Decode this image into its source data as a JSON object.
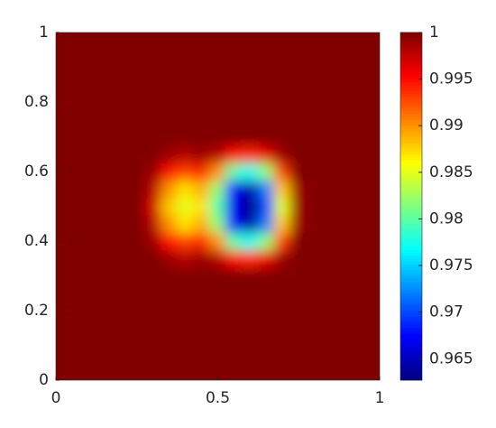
{
  "chart_data": {
    "type": "heatmap",
    "colormap": "jet",
    "x": [
      0,
      0.05,
      0.1,
      0.15,
      0.2,
      0.25,
      0.3,
      0.35,
      0.4,
      0.45,
      0.5,
      0.55,
      0.6,
      0.65,
      0.7,
      0.75,
      0.8,
      0.85,
      0.9,
      0.95,
      1
    ],
    "y": [
      0,
      0.05,
      0.1,
      0.15,
      0.2,
      0.25,
      0.3,
      0.35,
      0.4,
      0.45,
      0.5,
      0.55,
      0.6,
      0.65,
      0.7,
      0.75,
      0.8,
      0.85,
      0.9,
      0.95,
      1
    ],
    "z": [
      [
        1,
        1,
        1,
        1,
        1,
        1,
        1,
        1,
        1,
        1,
        1,
        1,
        1,
        1,
        1,
        1,
        1,
        1,
        1,
        1,
        1
      ],
      [
        1,
        1,
        1,
        1,
        1,
        1,
        1,
        1,
        1,
        1,
        1,
        1,
        1,
        1,
        1,
        1,
        1,
        1,
        1,
        1,
        1
      ],
      [
        1,
        1,
        1,
        1,
        1,
        1,
        1,
        1,
        1,
        1,
        1,
        1,
        1,
        1,
        1,
        1,
        1,
        1,
        1,
        1,
        1
      ],
      [
        1,
        1,
        1,
        1,
        1,
        1,
        1,
        1,
        1,
        1,
        1,
        1,
        1,
        1,
        1,
        1,
        1,
        1,
        1,
        1,
        1
      ],
      [
        1,
        1,
        1,
        1,
        1,
        1,
        1,
        1,
        1,
        1,
        1,
        1,
        1,
        1,
        1,
        1,
        1,
        1,
        1,
        1,
        1
      ],
      [
        1,
        1,
        1,
        1,
        1,
        1,
        1,
        1,
        1,
        1,
        1,
        1,
        1,
        1,
        1,
        1,
        1,
        1,
        1,
        1,
        1
      ],
      [
        1,
        1,
        1,
        1,
        1,
        1,
        1,
        1,
        1,
        1,
        1,
        1,
        1,
        1,
        1,
        1,
        1,
        1,
        1,
        1,
        1
      ],
      [
        1,
        1,
        1,
        1,
        1,
        1,
        1,
        0.999,
        0.998,
        0.999,
        0.998,
        0.995,
        0.994,
        0.996,
        0.999,
        1,
        1,
        1,
        1,
        1,
        1
      ],
      [
        1,
        1,
        1,
        1,
        1,
        1,
        0.999,
        0.995,
        0.993,
        0.994,
        0.99,
        0.98,
        0.977,
        0.982,
        0.993,
        1,
        1,
        1,
        1,
        1,
        1
      ],
      [
        1,
        1,
        1,
        1,
        1,
        1,
        0.998,
        0.99,
        0.987,
        0.989,
        0.982,
        0.968,
        0.964,
        0.972,
        0.988,
        0.999,
        1,
        1,
        1,
        1,
        1
      ],
      [
        1,
        1,
        1,
        1,
        1,
        1,
        0.997,
        0.988,
        0.985,
        0.987,
        0.98,
        0.967,
        0.963,
        0.97,
        0.985,
        0.999,
        1,
        1,
        1,
        1,
        1
      ],
      [
        1,
        1,
        1,
        1,
        1,
        1,
        0.998,
        0.99,
        0.987,
        0.989,
        0.982,
        0.968,
        0.964,
        0.972,
        0.988,
        0.999,
        1,
        1,
        1,
        1,
        1
      ],
      [
        1,
        1,
        1,
        1,
        1,
        1,
        0.999,
        0.995,
        0.993,
        0.994,
        0.99,
        0.98,
        0.977,
        0.982,
        0.993,
        1,
        1,
        1,
        1,
        1,
        1
      ],
      [
        1,
        1,
        1,
        1,
        1,
        1,
        1,
        0.999,
        0.998,
        0.999,
        0.998,
        0.995,
        0.994,
        0.996,
        0.999,
        1,
        1,
        1,
        1,
        1,
        1
      ],
      [
        1,
        1,
        1,
        1,
        1,
        1,
        1,
        1,
        1,
        1,
        1,
        1,
        1,
        1,
        1,
        1,
        1,
        1,
        1,
        1,
        1
      ],
      [
        1,
        1,
        1,
        1,
        1,
        1,
        1,
        1,
        1,
        1,
        1,
        1,
        1,
        1,
        1,
        1,
        1,
        1,
        1,
        1,
        1
      ],
      [
        1,
        1,
        1,
        1,
        1,
        1,
        1,
        1,
        1,
        1,
        1,
        1,
        1,
        1,
        1,
        1,
        1,
        1,
        1,
        1,
        1
      ],
      [
        1,
        1,
        1,
        1,
        1,
        1,
        1,
        1,
        1,
        1,
        1,
        1,
        1,
        1,
        1,
        1,
        1,
        1,
        1,
        1,
        1
      ],
      [
        1,
        1,
        1,
        1,
        1,
        1,
        1,
        1,
        1,
        1,
        1,
        1,
        1,
        1,
        1,
        1,
        1,
        1,
        1,
        1,
        1
      ],
      [
        1,
        1,
        1,
        1,
        1,
        1,
        1,
        1,
        1,
        1,
        1,
        1,
        1,
        1,
        1,
        1,
        1,
        1,
        1,
        1,
        1
      ],
      [
        1,
        1,
        1,
        1,
        1,
        1,
        1,
        1,
        1,
        1,
        1,
        1,
        1,
        1,
        1,
        1,
        1,
        1,
        1,
        1,
        1
      ]
    ],
    "xlim": [
      0,
      1
    ],
    "xticks": [
      0,
      0.5,
      1
    ],
    "ylim": [
      0,
      1
    ],
    "yticks": [
      0,
      0.2,
      0.4,
      0.6,
      0.8,
      1
    ],
    "clim": [
      0.9627,
      1
    ],
    "cticks": [
      0.965,
      0.97,
      0.975,
      0.98,
      0.985,
      0.99,
      0.995,
      1
    ]
  }
}
